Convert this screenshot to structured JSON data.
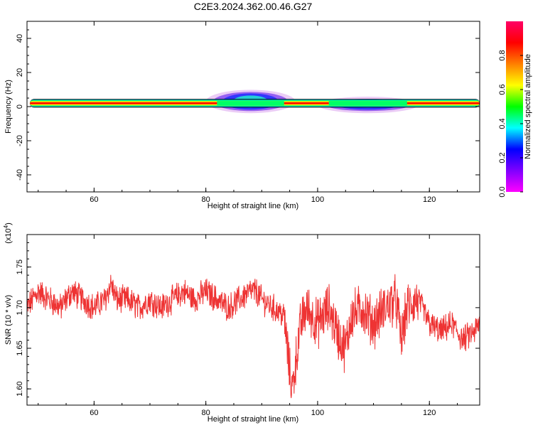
{
  "title": "C2E3.2024.362.00.46.G27",
  "colors": {
    "snr_line": "#ee3333",
    "colorbar_stops": [
      "#ff00ff",
      "#7f00ff",
      "#0000ff",
      "#00ffff",
      "#00ff00",
      "#ffff00",
      "#ff7f00",
      "#ff0000",
      "#ff0066"
    ]
  },
  "chart_data": [
    {
      "type": "heatmap",
      "title": "",
      "xlabel": "Height of straight line (km)",
      "ylabel": "Frequency (Hz)",
      "xlim": [
        48,
        129
      ],
      "ylim": [
        -50,
        50
      ],
      "xticks": [
        "60",
        "80",
        "100",
        "120"
      ],
      "yticks": [
        "-40",
        "-20",
        "0",
        "20",
        "40"
      ],
      "colorbar": {
        "label": "Normalized spectral amplitude",
        "range": [
          0,
          1
        ],
        "ticks": [
          "0.0",
          "0.2",
          "0.4",
          "0.6",
          "0.8"
        ]
      },
      "ridge": {
        "frequency_hz": 2,
        "x_start": 48.5,
        "x_end": 129,
        "spread_regions": [
          {
            "x_from": 80,
            "x_to": 96,
            "center_freq": 3,
            "max_freq": 6
          },
          {
            "x_from": 100,
            "x_to": 118,
            "center_freq": 1,
            "max_freq": 4
          }
        ]
      }
    },
    {
      "type": "line",
      "title": "",
      "xlabel": "Height of straight line (km)",
      "ylabel": "SNR (10 * v/v)",
      "y_multiplier": "(x10",
      "y_multiplier_exp": "4",
      "y_multiplier_close": ")",
      "xlim": [
        48,
        129
      ],
      "ylim": [
        1.58,
        1.79
      ],
      "xticks": [
        "60",
        "80",
        "100",
        "120"
      ],
      "yticks": [
        "1.60",
        "1.65",
        "1.70",
        "1.75"
      ],
      "x": [
        48,
        50,
        52,
        54,
        56,
        58,
        60,
        62,
        63,
        64,
        66,
        68,
        70,
        72,
        74,
        76,
        78,
        80,
        82,
        84,
        86,
        88,
        89,
        90,
        92,
        94,
        95,
        95.5,
        96,
        97,
        98,
        100,
        102,
        104,
        105,
        106,
        108,
        110,
        112,
        114,
        115,
        116,
        118,
        120,
        122,
        124,
        126,
        128,
        129
      ],
      "y": [
        1.7,
        1.72,
        1.71,
        1.7,
        1.72,
        1.71,
        1.7,
        1.71,
        1.73,
        1.71,
        1.71,
        1.7,
        1.71,
        1.7,
        1.71,
        1.72,
        1.71,
        1.72,
        1.71,
        1.7,
        1.71,
        1.72,
        1.72,
        1.71,
        1.7,
        1.69,
        1.62,
        1.6,
        1.63,
        1.68,
        1.7,
        1.68,
        1.7,
        1.66,
        1.65,
        1.69,
        1.7,
        1.68,
        1.7,
        1.71,
        1.66,
        1.7,
        1.71,
        1.68,
        1.67,
        1.68,
        1.66,
        1.67,
        1.68
      ],
      "noise_amplitude": 0.015
    }
  ]
}
